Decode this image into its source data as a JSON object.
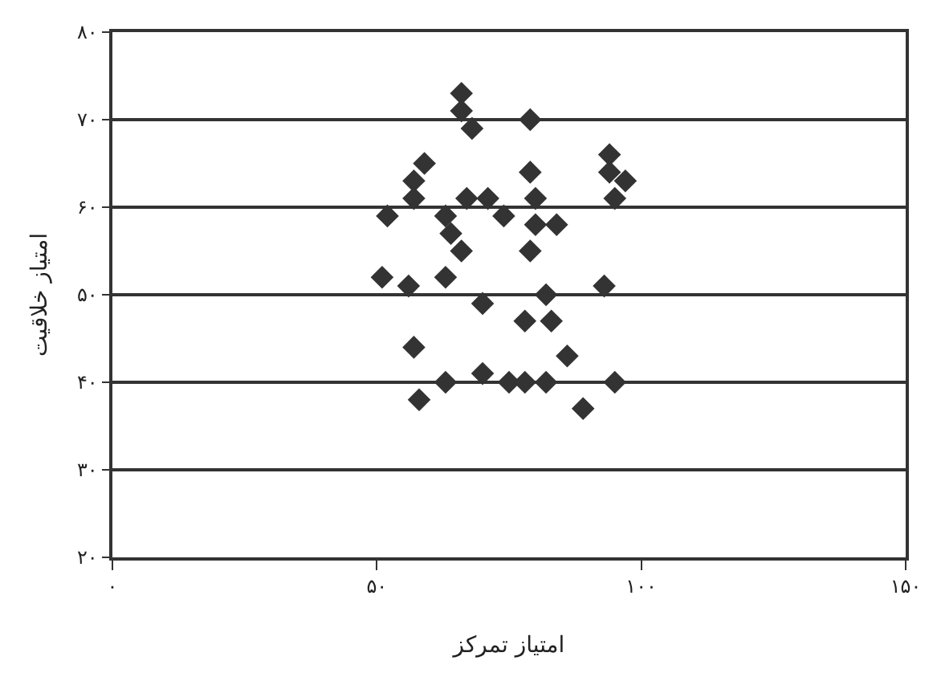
{
  "chart_data": {
    "type": "scatter",
    "xlabel": "امتیاز تمرکز",
    "ylabel": "امتیاز خلاقیت",
    "x": [
      66,
      66,
      68,
      79,
      59,
      57,
      57,
      52,
      63,
      67,
      71,
      74,
      64,
      66,
      79,
      80,
      80,
      84,
      79,
      94,
      94,
      97,
      95,
      51,
      56,
      63,
      70,
      82,
      93,
      78,
      83,
      57,
      86,
      63,
      70,
      75,
      78,
      82,
      95,
      58,
      89
    ],
    "values": [
      73,
      71,
      69,
      70,
      65,
      63,
      61,
      59,
      59,
      61,
      61,
      59,
      57,
      55,
      64,
      61,
      58,
      58,
      55,
      66,
      64,
      63,
      61,
      52,
      51,
      52,
      49,
      50,
      51,
      47,
      47,
      44,
      43,
      40,
      41,
      40,
      40,
      40,
      40,
      38,
      37
    ],
    "color": "#333333",
    "marker": "diamond",
    "grid": "y",
    "legend": false,
    "xlim": [
      0,
      150
    ],
    "xticks": [
      {
        "value": 0,
        "label": "۰"
      },
      {
        "value": 50,
        "label": "۵۰"
      },
      {
        "value": 100,
        "label": "۱۰۰"
      },
      {
        "value": 150,
        "label": "۱۵۰"
      }
    ],
    "ylim": [
      20,
      80
    ],
    "yticks": [
      {
        "value": 20,
        "label": "۲۰"
      },
      {
        "value": 30,
        "label": "۳۰"
      },
      {
        "value": 40,
        "label": "۴۰"
      },
      {
        "value": 50,
        "label": "۵۰"
      },
      {
        "value": 60,
        "label": "۶۰"
      },
      {
        "value": 70,
        "label": "۷۰"
      },
      {
        "value": 80,
        "label": "۸۰"
      }
    ]
  }
}
